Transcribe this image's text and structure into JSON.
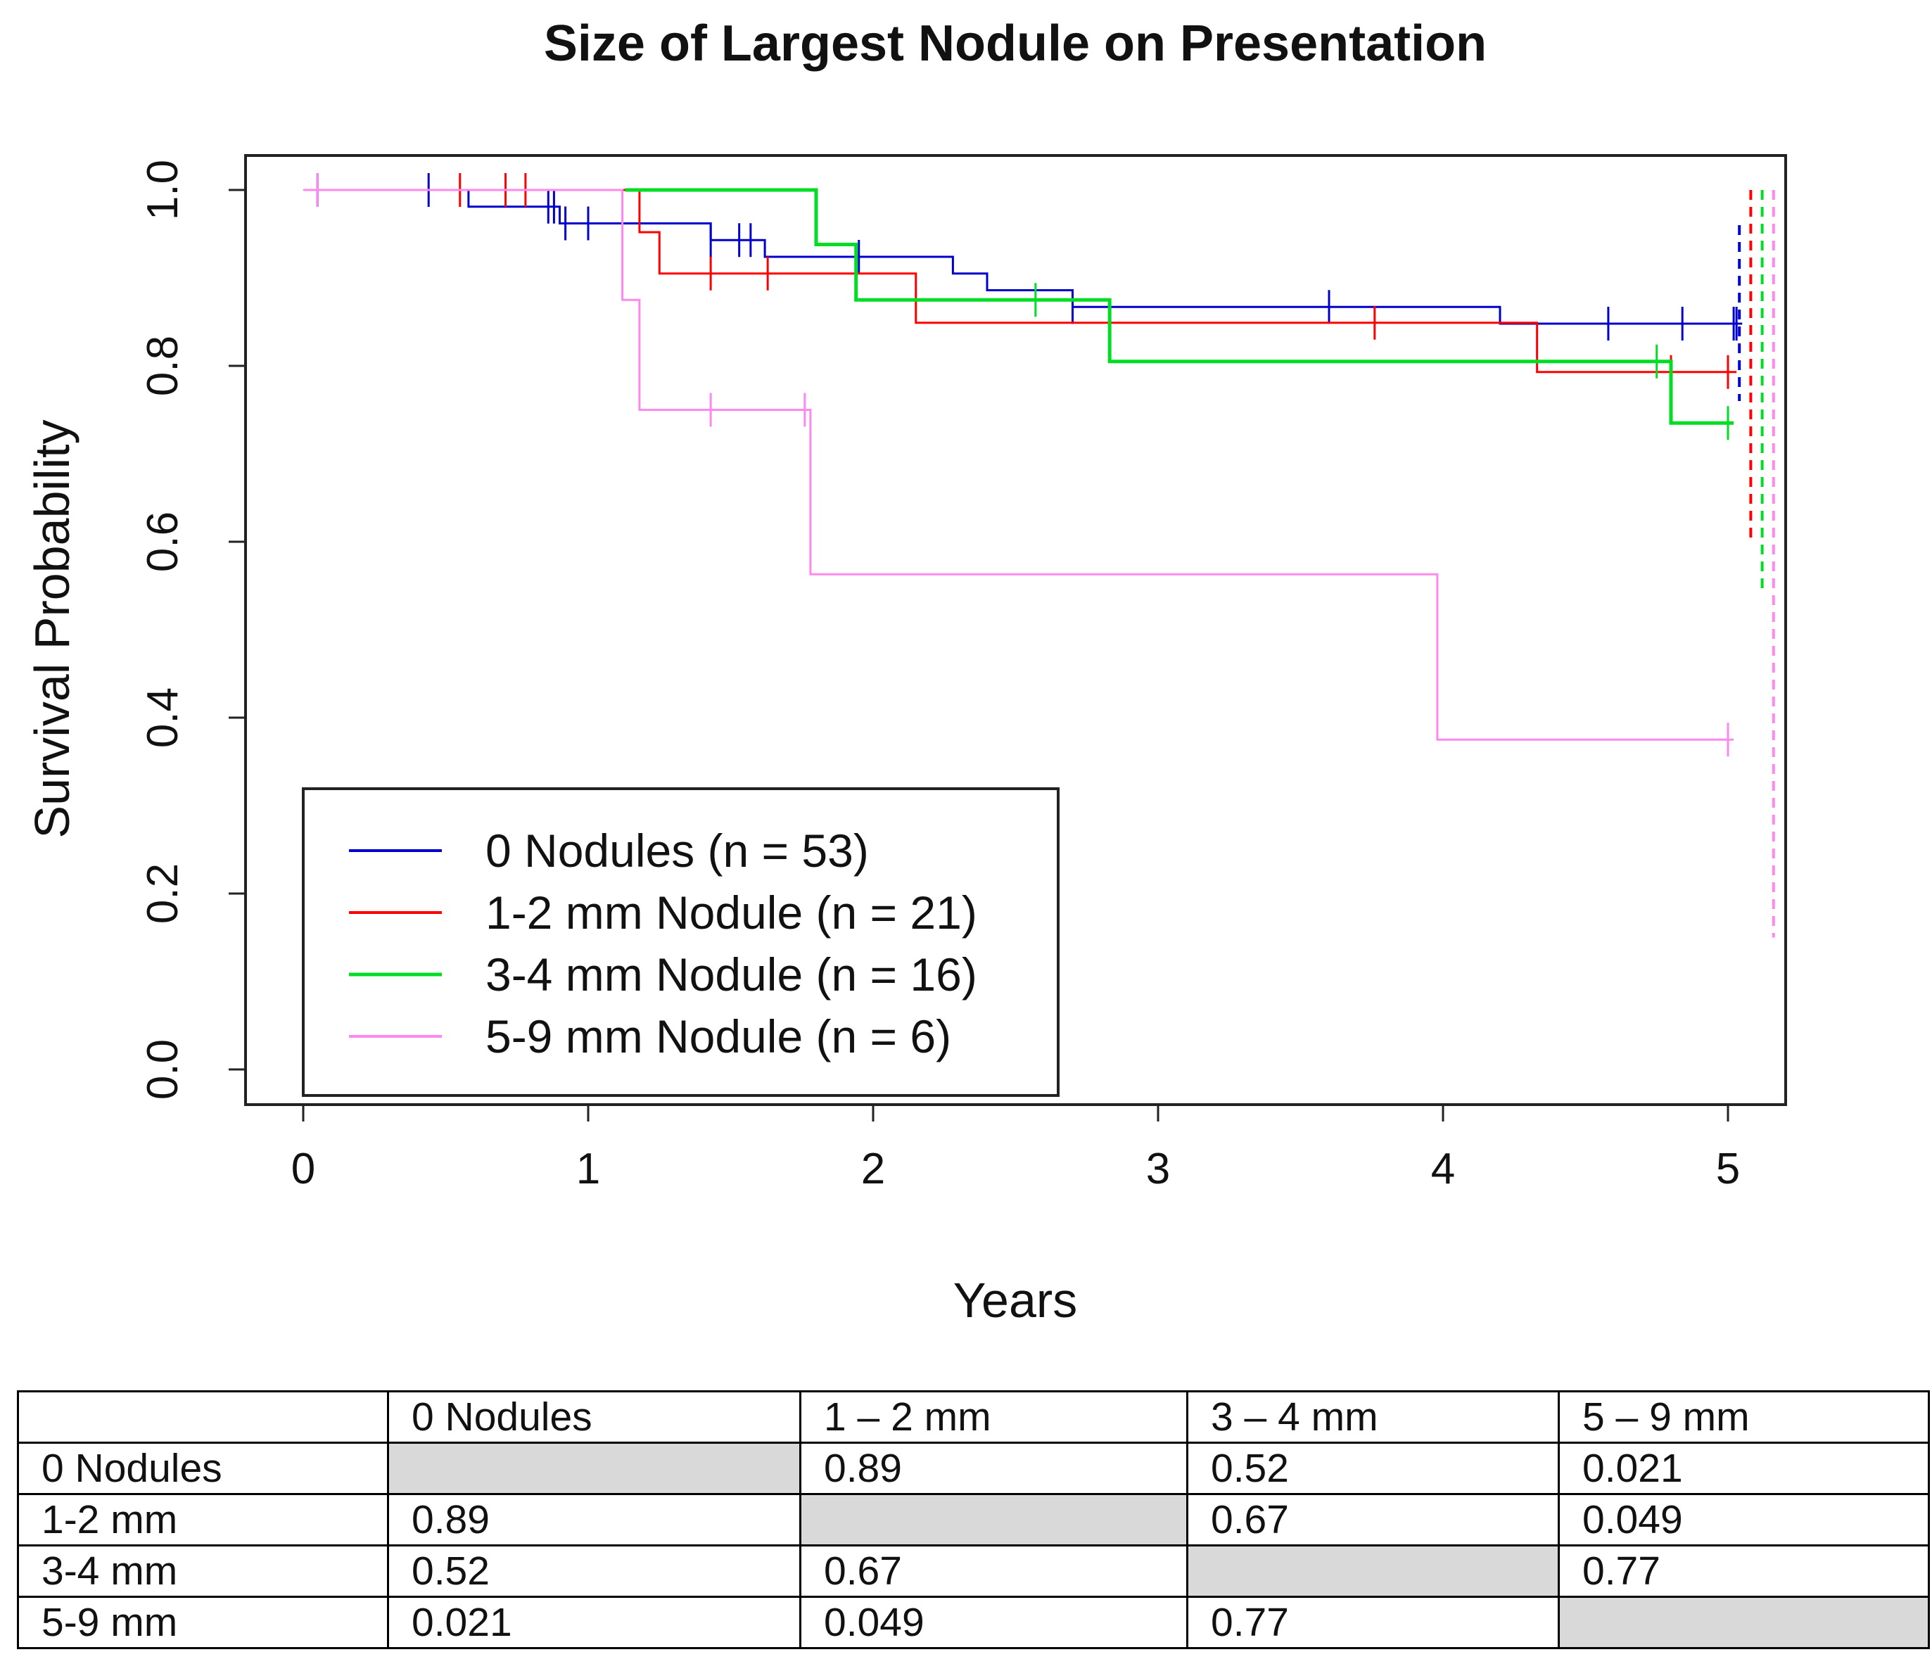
{
  "chart_data": {
    "type": "line",
    "subtype": "kaplan-meier",
    "title": "Size of Largest Nodule on Presentation",
    "xlabel": "Years",
    "ylabel": "Survival Probability",
    "xlim": [
      0,
      5.2
    ],
    "ylim": [
      0,
      1.0
    ],
    "xticks": [
      "0",
      "1",
      "2",
      "3",
      "4",
      "5"
    ],
    "yticks": [
      "0.0",
      "0.2",
      "0.4",
      "0.6",
      "0.8",
      "1.0"
    ],
    "legend_position": "bottom-left",
    "series": [
      {
        "name": "0 Nodules (n = 53)",
        "color": "#0000cc",
        "steps": [
          [
            0,
            1.0
          ],
          [
            0.58,
            0.981
          ],
          [
            0.9,
            0.962
          ],
          [
            1.43,
            0.943
          ],
          [
            1.62,
            0.924
          ],
          [
            2.28,
            0.905
          ],
          [
            2.4,
            0.886
          ],
          [
            2.7,
            0.867
          ],
          [
            4.2,
            0.848
          ],
          [
            5.05,
            0.848
          ]
        ],
        "censor_times": [
          0.05,
          0.44,
          0.86,
          0.88,
          0.92,
          1.0,
          1.43,
          1.53,
          1.57,
          1.95,
          2.7,
          2.7,
          3.6,
          4.58,
          4.84,
          5.02,
          5.03
        ],
        "ci_line": {
          "x": 5.04,
          "y_top": 0.96,
          "y_bottom": 0.76
        }
      },
      {
        "name": "1-2 mm Nodule (n = 21)",
        "color": "#ff0000",
        "steps": [
          [
            0,
            1.0
          ],
          [
            1.18,
            0.952
          ],
          [
            1.25,
            0.905
          ],
          [
            2.15,
            0.849
          ],
          [
            4.33,
            0.793
          ],
          [
            5.03,
            0.793
          ]
        ],
        "censor_times": [
          0.55,
          0.71,
          0.78,
          1.43,
          1.63,
          3.76,
          4.8,
          5.0
        ],
        "ci_line": {
          "x": 5.08,
          "y_top": 1.0,
          "y_bottom": 0.6
        }
      },
      {
        "name": "3-4 mm Nodule (n = 16)",
        "color": "#00dd22",
        "steps": [
          [
            1.13,
            1.0
          ],
          [
            1.8,
            0.938
          ],
          [
            1.94,
            0.875
          ],
          [
            2.83,
            0.805
          ],
          [
            4.8,
            0.735
          ],
          [
            5.02,
            0.735
          ]
        ],
        "censor_times": [
          2.57,
          4.75,
          5.0
        ],
        "ci_line": {
          "x": 5.12,
          "y_top": 1.0,
          "y_bottom": 0.54
        }
      },
      {
        "name": "5-9 mm Nodule (n = 6)",
        "color": "#ff88ee",
        "steps": [
          [
            0,
            1.0
          ],
          [
            1.12,
            0.875
          ],
          [
            1.18,
            0.75
          ],
          [
            1.78,
            0.563
          ],
          [
            3.98,
            0.375
          ],
          [
            5.02,
            0.375
          ]
        ],
        "censor_times": [
          0.05,
          1.43,
          1.76,
          5.0
        ],
        "ci_line": {
          "x": 5.16,
          "y_top": 1.0,
          "y_bottom": 0.15
        }
      }
    ],
    "pvalue_table": {
      "columns": [
        "",
        "0 Nodules",
        "1 – 2 mm",
        "3 – 4 mm",
        "5 – 9 mm"
      ],
      "rows": [
        [
          "0 Nodules",
          "",
          "0.89",
          "0.52",
          "0.021"
        ],
        [
          "1-2 mm",
          "0.89",
          "",
          "0.67",
          "0.049"
        ],
        [
          "3-4 mm",
          "0.52",
          "0.67",
          "",
          "0.77"
        ],
        [
          "5-9 mm",
          "0.021",
          "0.049",
          "0.77",
          ""
        ]
      ]
    }
  }
}
